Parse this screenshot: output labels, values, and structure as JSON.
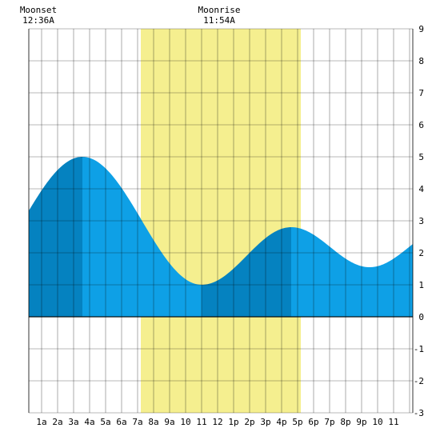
{
  "chart_data": {
    "type": "area",
    "title": "",
    "xlabel": "",
    "ylabel": "",
    "x_range_hours": [
      0.2,
      24.2
    ],
    "ylim": [
      -3,
      9
    ],
    "y_ticks": [
      9,
      8,
      7,
      6,
      5,
      4,
      3,
      2,
      1,
      0,
      -1,
      -2,
      -3
    ],
    "x_tick_labels": [
      {
        "hour": 1,
        "label": "1a"
      },
      {
        "hour": 2,
        "label": "2a"
      },
      {
        "hour": 3,
        "label": "3a"
      },
      {
        "hour": 4,
        "label": "4a"
      },
      {
        "hour": 5,
        "label": "5a"
      },
      {
        "hour": 6,
        "label": "6a"
      },
      {
        "hour": 7,
        "label": "7a"
      },
      {
        "hour": 8,
        "label": "8a"
      },
      {
        "hour": 9,
        "label": "9a"
      },
      {
        "hour": 10,
        "label": "10"
      },
      {
        "hour": 11,
        "label": "11"
      },
      {
        "hour": 12,
        "label": "12"
      },
      {
        "hour": 13,
        "label": "1p"
      },
      {
        "hour": 14,
        "label": "2p"
      },
      {
        "hour": 15,
        "label": "3p"
      },
      {
        "hour": 16,
        "label": "4p"
      },
      {
        "hour": 17,
        "label": "5p"
      },
      {
        "hour": 18,
        "label": "6p"
      },
      {
        "hour": 19,
        "label": "7p"
      },
      {
        "hour": 20,
        "label": "8p"
      },
      {
        "hour": 21,
        "label": "9p"
      },
      {
        "hour": 22,
        "label": "10"
      },
      {
        "hour": 23,
        "label": "11"
      }
    ],
    "daylight": {
      "start_hour": 7.2,
      "end_hour": 17.2
    },
    "tide_extremes": [
      {
        "hour": 3.55,
        "height": 5.0,
        "kind": "high"
      },
      {
        "hour": 11.0,
        "height": 1.0,
        "kind": "low"
      },
      {
        "hour": 16.6,
        "height": 2.8,
        "kind": "high"
      },
      {
        "hour": 21.5,
        "height": 1.55,
        "kind": "low"
      }
    ],
    "tide_at_start": 3.0,
    "tide_at_end": 2.6,
    "moon_events": [
      {
        "title": "Moonset",
        "time": "12:36A",
        "hour": 0.6
      },
      {
        "title": "Moonrise",
        "time": "11:54A",
        "hour": 11.9
      }
    ],
    "colors": {
      "daylight": "#f5ef8f",
      "tide_light": "#0ea0e6",
      "tide_dark": "#0582c0",
      "grid": "#000000",
      "zero_line": "#000000"
    }
  }
}
